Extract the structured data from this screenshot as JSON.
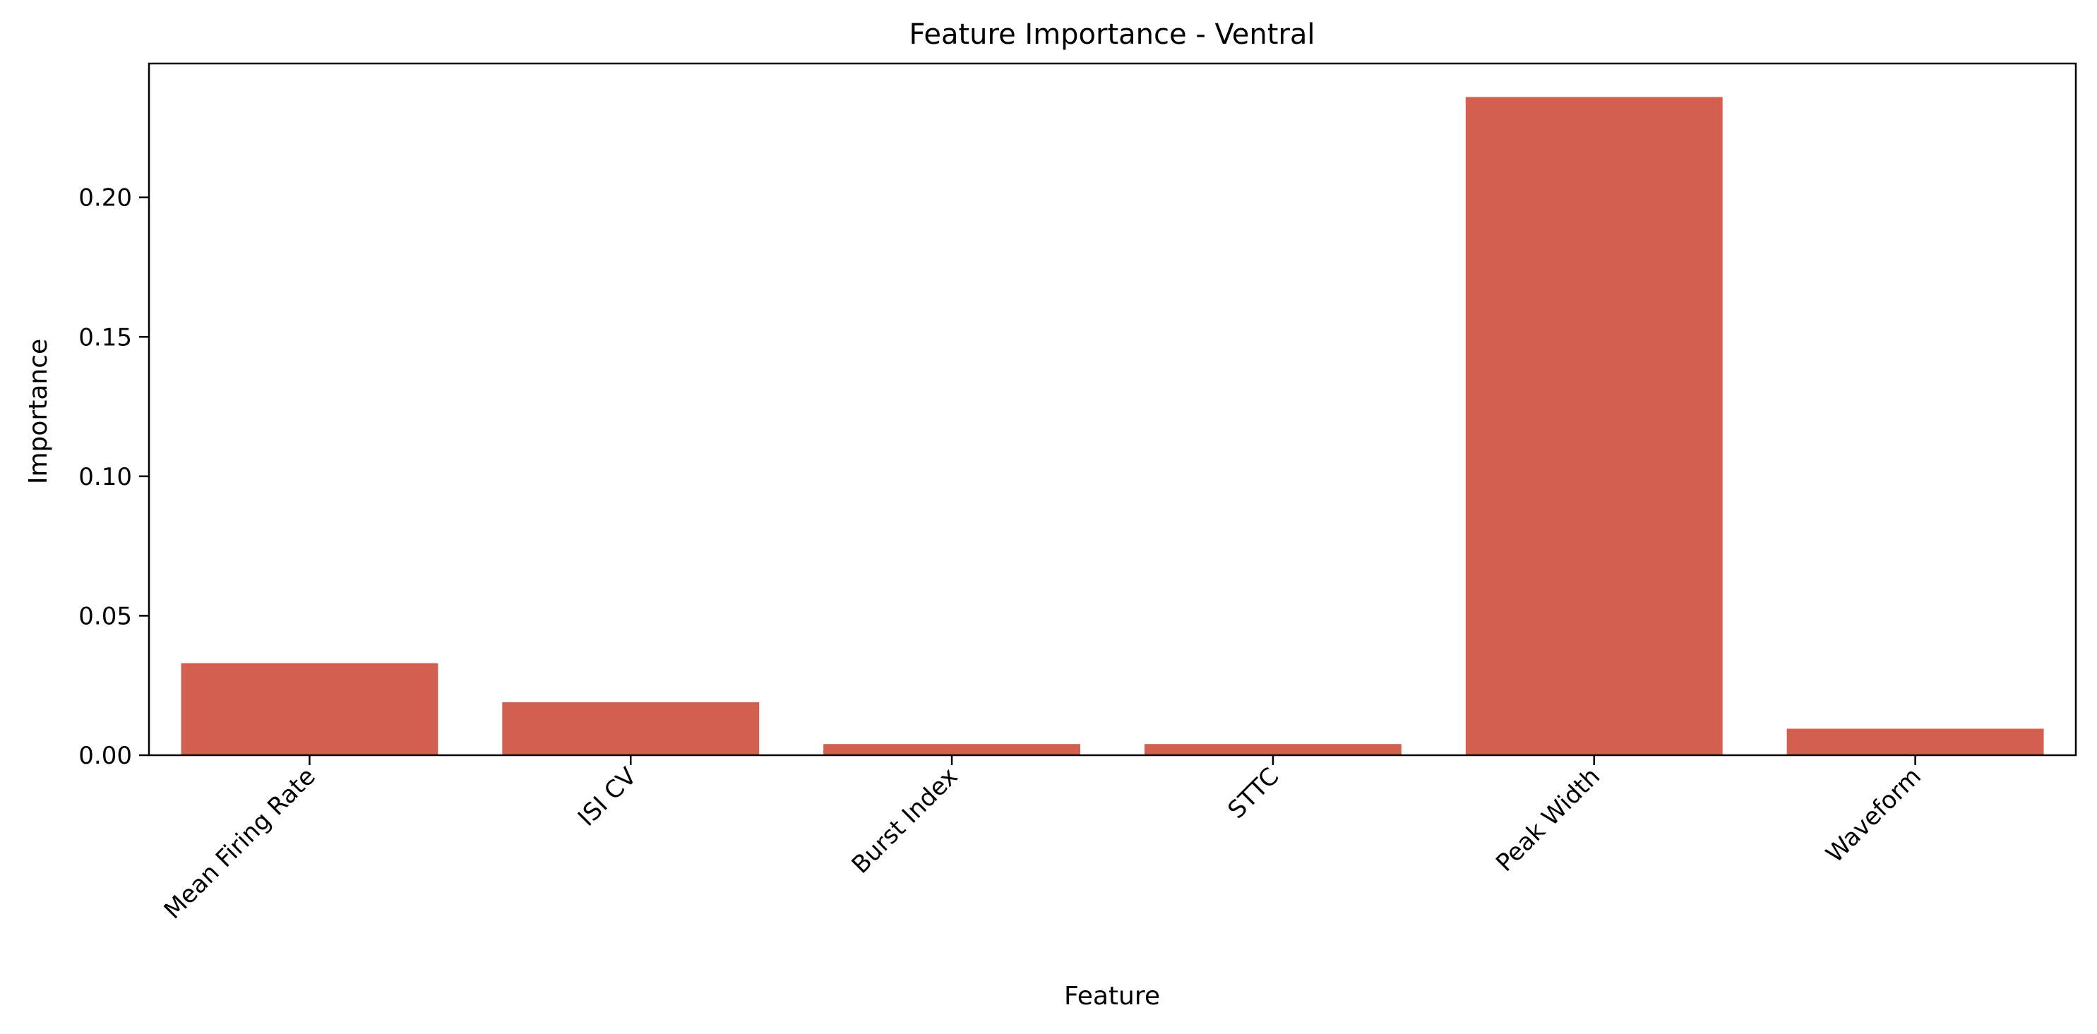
{
  "chart_data": {
    "type": "bar",
    "title": "Feature Importance - Ventral",
    "xlabel": "Feature",
    "ylabel": "Importance",
    "categories": [
      "Mean Firing Rate",
      "ISI CV",
      "Burst Index",
      "STTC",
      "Peak Width",
      "Waveform"
    ],
    "values": [
      0.033,
      0.019,
      0.004,
      0.004,
      0.236,
      0.0095
    ],
    "ylim": [
      0,
      0.248
    ],
    "yticks": [
      0.0,
      0.05,
      0.1,
      0.15,
      0.2
    ],
    "ytick_labels": [
      "0.00",
      "0.05",
      "0.10",
      "0.15",
      "0.20"
    ],
    "bar_color": "#d35f50",
    "grid": false,
    "legend": "none"
  }
}
